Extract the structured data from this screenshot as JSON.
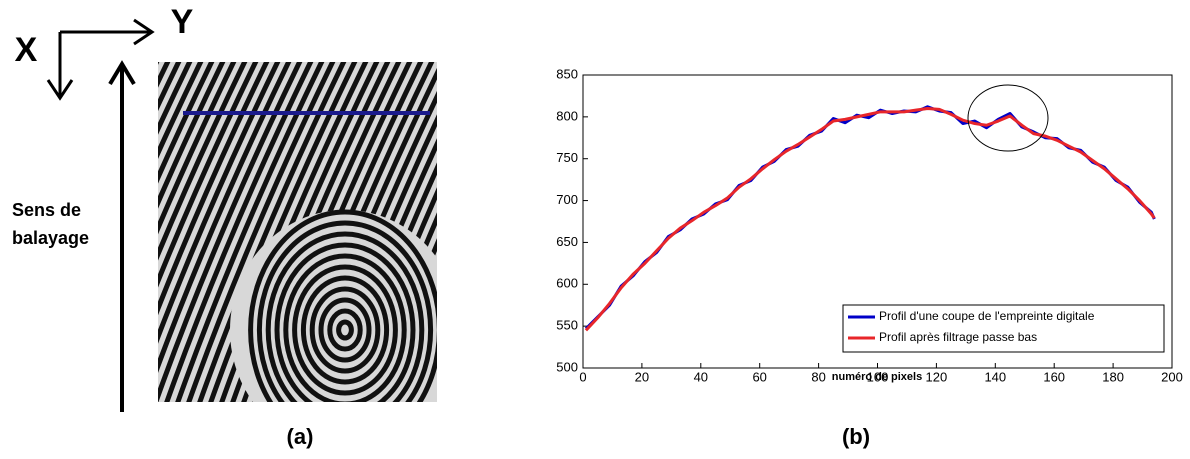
{
  "panel_a": {
    "x_letter": "X",
    "y_letter": "Y",
    "scan_label": "Sens de balayage",
    "caption": "(a)"
  },
  "panel_b_caption": "(b)",
  "chart_data": {
    "type": "line",
    "x_label": "numéro de pixels",
    "x": [
      1,
      5,
      9,
      13,
      17,
      21,
      25,
      29,
      33,
      37,
      41,
      45,
      49,
      53,
      57,
      61,
      65,
      69,
      73,
      77,
      81,
      85,
      89,
      93,
      97,
      101,
      105,
      109,
      113,
      117,
      121,
      125,
      129,
      133,
      137,
      141,
      145,
      149,
      153,
      157,
      161,
      165,
      169,
      173,
      177,
      181,
      185,
      189,
      193,
      194
    ],
    "series": [
      {
        "name": "Profil d'une coupe de l'empreinte digitale",
        "color": "#0000c8",
        "values": [
          547,
          561,
          575,
          598,
          610,
          627,
          638,
          657,
          665,
          678,
          684,
          696,
          701,
          718,
          724,
          740,
          747,
          761,
          765,
          778,
          783,
          798,
          793,
          802,
          799,
          808,
          804,
          807,
          806,
          812,
          807,
          805,
          792,
          795,
          787,
          797,
          804,
          788,
          782,
          775,
          774,
          763,
          760,
          746,
          740,
          724,
          716,
          698,
          686,
          678
        ]
      },
      {
        "name": "Profil après filtrage passe bas",
        "color": "#e8262a",
        "values": [
          545,
          560,
          577,
          596,
          612,
          625,
          640,
          655,
          667,
          676,
          686,
          694,
          703,
          716,
          726,
          738,
          749,
          759,
          767,
          776,
          785,
          795,
          797,
          800,
          803,
          806,
          806,
          806,
          808,
          810,
          809,
          803,
          796,
          792,
          790,
          795,
          801,
          790,
          780,
          777,
          772,
          765,
          758,
          748,
          738,
          726,
          714,
          700,
          684,
          679
        ]
      }
    ],
    "xlim": [
      0,
      200
    ],
    "ylim": [
      500,
      850
    ],
    "xticks": [
      0,
      20,
      40,
      60,
      80,
      100,
      120,
      140,
      160,
      180,
      200
    ],
    "yticks": [
      500,
      550,
      600,
      650,
      700,
      750,
      800,
      850
    ],
    "legend": "lower right",
    "grid": false
  }
}
